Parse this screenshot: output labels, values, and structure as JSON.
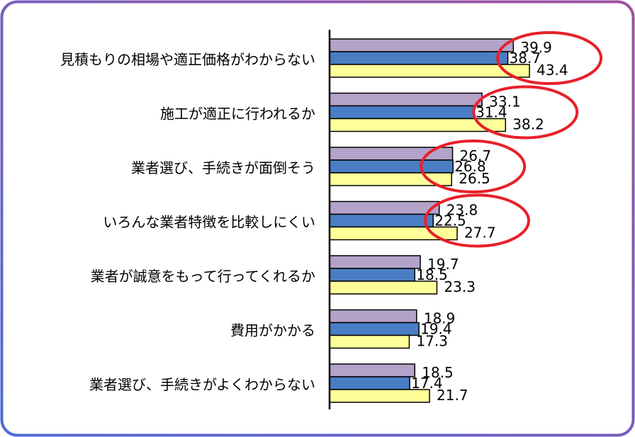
{
  "chart_data": {
    "type": "bar",
    "orientation": "horizontal",
    "categories": [
      "見積もりの相場や適正価格がわからない",
      "施工が適正に行われるか",
      "業者選び、手続きが面倒そう",
      "いろんな業者特徴を比較しにくい",
      "業者が誠意をもって行ってくれるか",
      "費用がかかる",
      "業者選び、手続きがよくわからない"
    ],
    "series": [
      {
        "values": [
          39.9,
          33.1,
          26.7,
          23.8,
          19.7,
          18.9,
          18.5
        ],
        "color": "#b3a3c9"
      },
      {
        "values": [
          38.7,
          31.4,
          26.8,
          22.5,
          18.5,
          19.4,
          17.4
        ],
        "color": "#4a7ec4"
      },
      {
        "values": [
          43.4,
          38.2,
          26.5,
          27.7,
          23.3,
          17.3,
          21.7
        ],
        "color": "#ffff9a"
      }
    ],
    "value_labels": [
      [
        "39.9",
        "38.7",
        "43.4"
      ],
      [
        "33.1",
        "31.4",
        "38.2"
      ],
      [
        "26.7",
        "26.8",
        "26.5"
      ],
      [
        "23.8",
        "22.5",
        "27.7"
      ],
      [
        "19.7",
        "18.5",
        "23.3"
      ],
      [
        "18.9",
        "19.4",
        "17.3"
      ],
      [
        "18.5",
        "17.4",
        "21.7"
      ]
    ],
    "highlighted_categories": [
      0,
      1,
      2,
      3
    ],
    "highlight_color": "#e8202a",
    "xlim": [
      0,
      100
    ],
    "grid": false,
    "legend": "none"
  },
  "colors": {
    "frame_gradient": [
      "#5a6fd6",
      "#9b5fb0"
    ],
    "axis": "#000000"
  }
}
